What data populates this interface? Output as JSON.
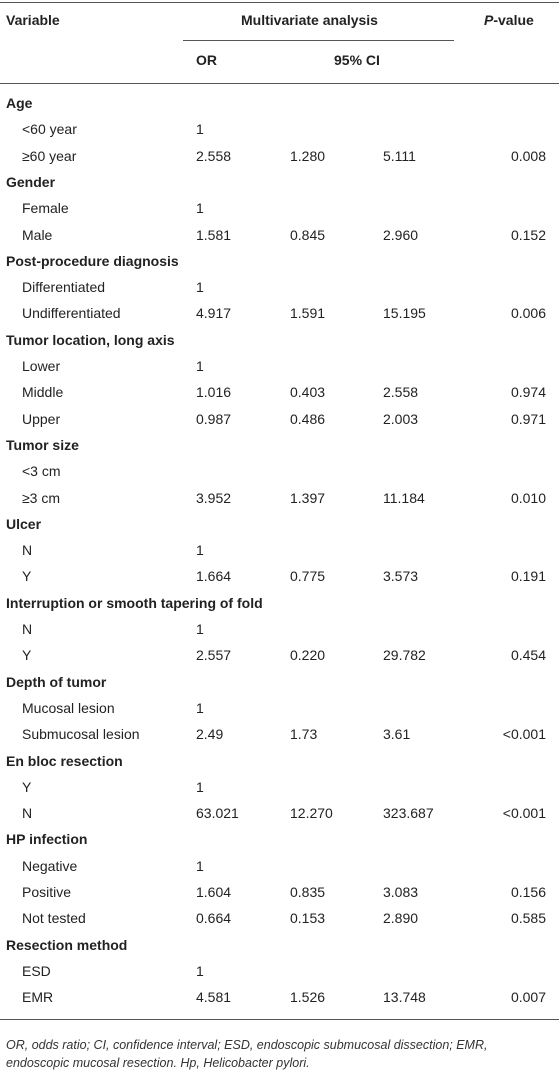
{
  "header": {
    "variable": "Variable",
    "multivariate": "Multivariate analysis",
    "p_value": [
      "P",
      "-value"
    ],
    "or": "OR",
    "ci": "95% CI"
  },
  "groups": [
    {
      "label": "Age",
      "rows": [
        [
          "<60 year",
          "1"
        ],
        [
          "≥60 year",
          "2.558",
          "1.280",
          "5.111",
          "0.008"
        ]
      ]
    },
    {
      "label": "Gender",
      "rows": [
        [
          "Female",
          "1"
        ],
        [
          "Male",
          "1.581",
          "0.845",
          "2.960",
          "0.152"
        ]
      ]
    },
    {
      "label": "Post-procedure diagnosis",
      "rows": [
        [
          "Differentiated",
          "1"
        ],
        [
          "Undifferentiated",
          "4.917",
          "1.591",
          "15.195",
          "0.006"
        ]
      ]
    },
    {
      "label": "Tumor location, long axis",
      "rows": [
        [
          "Lower",
          "1"
        ],
        [
          "Middle",
          "1.016",
          "0.403",
          "2.558",
          "0.974"
        ],
        [
          "Upper",
          "0.987",
          "0.486",
          "2.003",
          "0.971"
        ]
      ]
    },
    {
      "label": "Tumor size",
      "rows": [
        [
          "<3 cm"
        ],
        [
          "≥3 cm",
          "3.952",
          "1.397",
          "11.184",
          "0.010"
        ]
      ]
    },
    {
      "label": "Ulcer",
      "rows": [
        [
          "N",
          "1"
        ],
        [
          "Y",
          "1.664",
          "0.775",
          "3.573",
          "0.191"
        ]
      ]
    },
    {
      "label": "Interruption or smooth tapering of fold",
      "rows": [
        [
          "N",
          "1"
        ],
        [
          "Y",
          "2.557",
          "0.220",
          "29.782",
          "0.454"
        ]
      ]
    },
    {
      "label": "Depth of tumor",
      "rows": [
        [
          "Mucosal lesion",
          "1"
        ],
        [
          "Submucosal lesion",
          "2.49",
          "1.73",
          "3.61",
          "<0.001"
        ]
      ]
    },
    {
      "label": "En bloc resection",
      "rows": [
        [
          "Y",
          "1"
        ],
        [
          "N",
          "63.021",
          "12.270",
          "323.687",
          "<0.001"
        ]
      ]
    },
    {
      "label": "HP infection",
      "rows": [
        [
          "Negative",
          "1"
        ],
        [
          "Positive",
          "1.604",
          "0.835",
          "3.083",
          "0.156"
        ],
        [
          "Not tested",
          "0.664",
          "0.153",
          "2.890",
          "0.585"
        ]
      ]
    },
    {
      "label": "Resection method",
      "rows": [
        [
          "ESD",
          "1"
        ],
        [
          "EMR",
          "4.581",
          "1.526",
          "13.748",
          "0.007"
        ]
      ]
    }
  ],
  "footnote": "OR, odds ratio; CI, confidence interval; ESD, endoscopic submucosal dissection; EMR, endoscopic mucosal resection. Hp, Helicobacter pylori."
}
